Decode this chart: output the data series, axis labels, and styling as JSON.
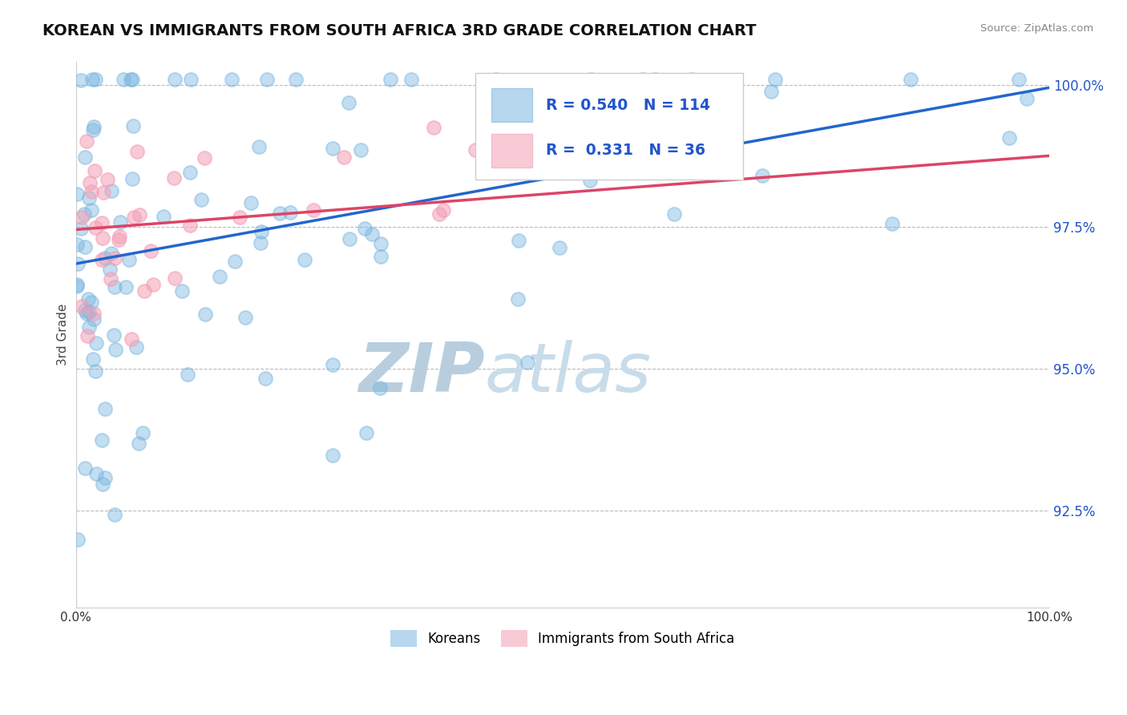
{
  "title": "KOREAN VS IMMIGRANTS FROM SOUTH AFRICA 3RD GRADE CORRELATION CHART",
  "source": "Source: ZipAtlas.com",
  "ylabel": "3rd Grade",
  "xlim": [
    0.0,
    1.0
  ],
  "ylim": [
    0.908,
    1.004
  ],
  "yticks": [
    0.925,
    0.95,
    0.975,
    1.0
  ],
  "ytick_labels": [
    "92.5%",
    "95.0%",
    "97.5%",
    "100.0%"
  ],
  "xtick_labels_left": "0.0%",
  "xtick_labels_right": "100.0%",
  "korean_color": "#7ab6e0",
  "sa_color": "#f4a0b5",
  "korean_R": 0.54,
  "korean_N": 114,
  "sa_R": 0.331,
  "sa_N": 36,
  "legend_blue_label": "Koreans",
  "legend_pink_label": "Immigrants from South Africa",
  "background_color": "#ffffff",
  "watermark_zip": "ZIP",
  "watermark_atlas": "atlas",
  "watermark_color": "#c5d8ee",
  "title_fontsize": 14,
  "axis_label_color": "#2255cc",
  "blue_line_color": "#2266cc",
  "pink_line_color": "#dd4466",
  "blue_line_x": [
    0.0,
    1.0
  ],
  "blue_line_y": [
    0.9685,
    0.9995
  ],
  "pink_line_x": [
    0.0,
    1.0
  ],
  "pink_line_y": [
    0.9745,
    0.9875
  ],
  "korean_seed": 7,
  "sa_seed": 13
}
